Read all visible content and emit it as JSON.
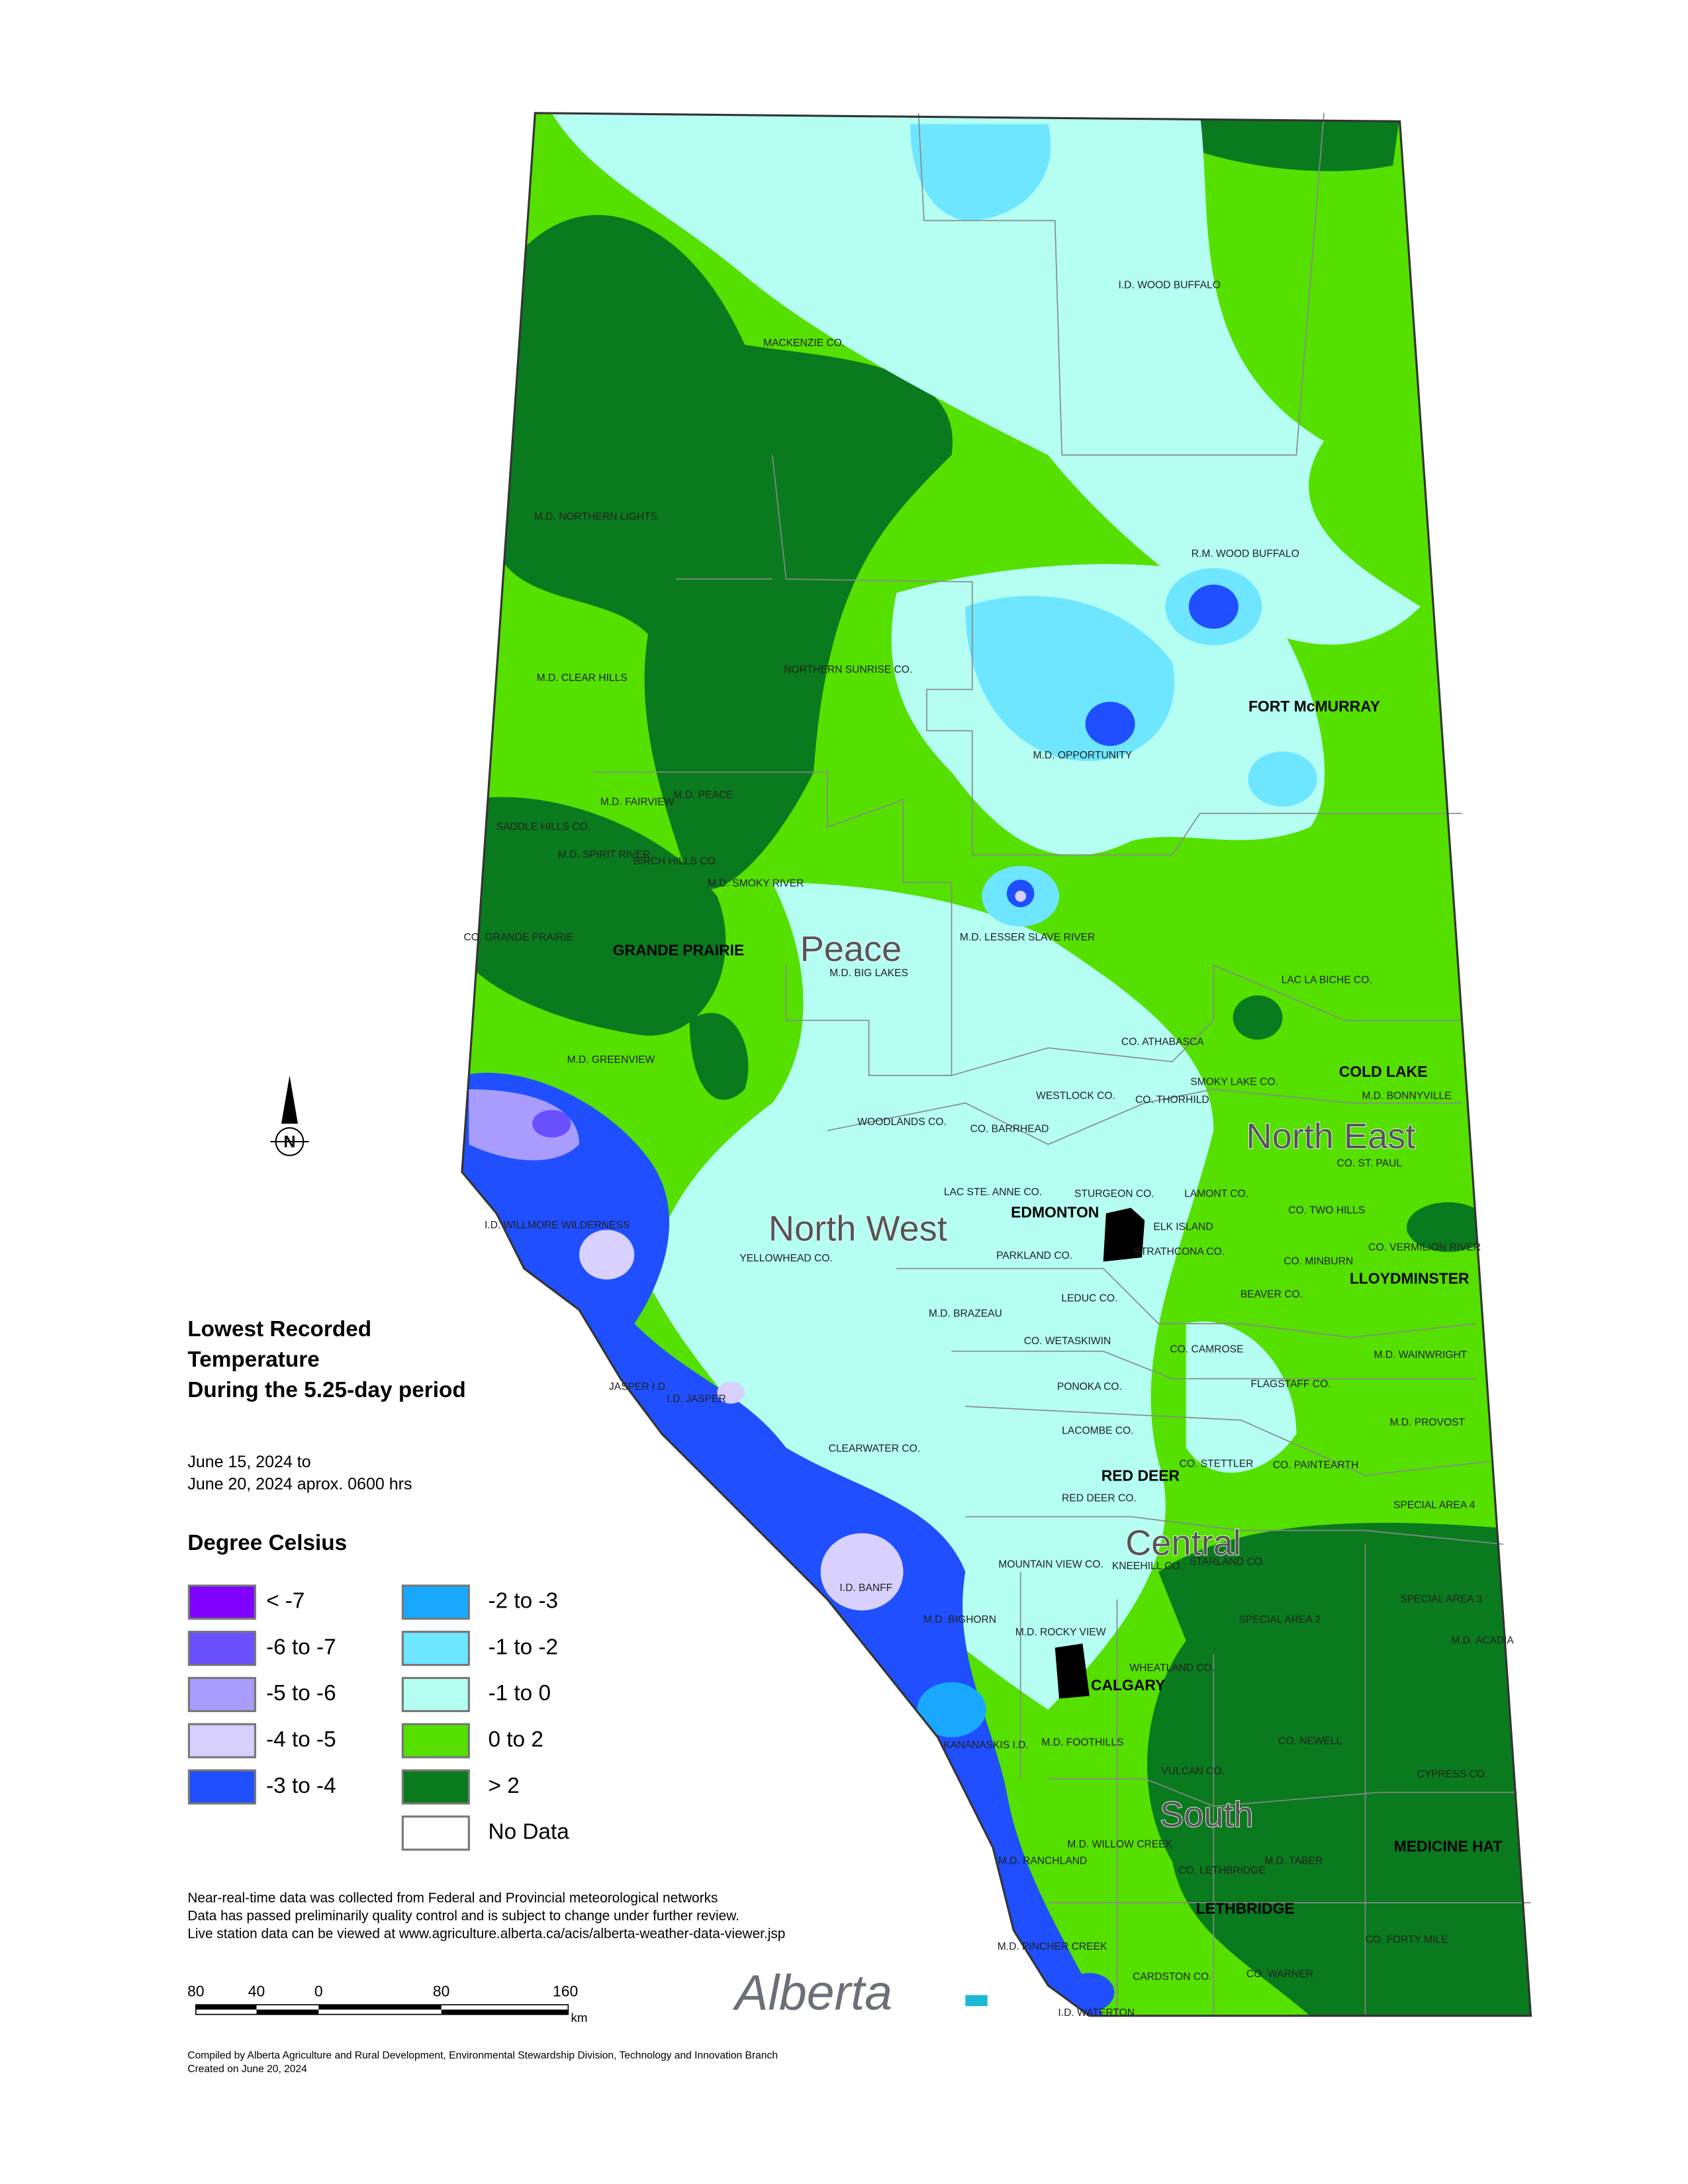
{
  "title_lines": [
    "Lowest Recorded",
    "Temperature",
    "During the 5.25-day period"
  ],
  "period_lines": [
    "June 15, 2024 to",
    "June 20, 2024 aprox. 0600 hrs"
  ],
  "legend": {
    "title": "Degree Celsius",
    "items": [
      {
        "label": "< -7",
        "color": "#8000ff"
      },
      {
        "label": "-6 to -7",
        "color": "#6a4fff"
      },
      {
        "label": "-5 to -6",
        "color": "#a89cff"
      },
      {
        "label": "-4 to -5",
        "color": "#d8d0ff"
      },
      {
        "label": "-3 to -4",
        "color": "#1f4fff"
      },
      {
        "label": "-2 to -3",
        "color": "#18a8ff"
      },
      {
        "label": "-1 to -2",
        "color": "#6ee6ff"
      },
      {
        "label": "-1 to 0",
        "color": "#b4fff2"
      },
      {
        "label": "0 to 2",
        "color": "#55e000"
      },
      {
        "label": "> 2",
        "color": "#0a7a1e"
      },
      {
        "label": "No Data",
        "color": "#ffffff"
      }
    ]
  },
  "notes": [
    "Near-real-time data was collected from Federal and Provincial meteorological networks",
    "Data has passed preliminarily quality control and is subject to change under further review.",
    "Live station data can be viewed at www.agriculture.alberta.ca/acis/alberta-weather-data-viewer.jsp"
  ],
  "scale": {
    "labels": [
      80,
      40,
      0,
      80,
      160
    ],
    "unit": "km"
  },
  "logo": "Alberta",
  "credits": [
    "Compiled by Alberta Agriculture and Rural Development, Environmental Stewardship Division, Technology and Innovation Branch",
    "Created on June 20, 2024"
  ],
  "regions": [
    "Peace",
    "North West",
    "North East",
    "Central",
    "South"
  ],
  "cities": [
    "FORT McMURRAY",
    "GRANDE PRAIRIE",
    "EDMONTON",
    "COLD LAKE",
    "LLOYDMINSTER",
    "RED DEER",
    "CALGARY",
    "MEDICINE HAT",
    "LETHBRIDGE"
  ],
  "municipalities": [
    "I.D. WOOD BUFFALO",
    "MACKENZIE CO.",
    "M.D. NORTHERN LIGHTS",
    "R.M. WOOD BUFFALO",
    "M.D. CLEAR HILLS",
    "NORTHERN SUNRISE CO.",
    "M.D. OPPORTUNITY",
    "SADDLE HILLS CO.",
    "M.D. LESSER SLAVE RIVER",
    "M.D. BIG LAKES",
    "LAC LA BICHE CO.",
    "M.D. GREENVIEW",
    "CO. ATHABASCA",
    "WESTLOCK CO.",
    "WOODLANDS CO.",
    "CO. BARRHEAD",
    "M.D. BONNYVILLE",
    "CO. ST. PAUL",
    "LAC STE. ANNE CO.",
    "STURGEON CO.",
    "LAMONT CO.",
    "CO. TWO HILLS",
    "I.D. WILLMORE WILDERNESS",
    "YELLOWHEAD CO.",
    "PARKLAND CO.",
    "STRATHCONA CO.",
    "CO. MINBURN",
    "LEDUC CO.",
    "BEAVER CO.",
    "M.D. BRAZEAU",
    "CO. WETASKIWIN",
    "CO. CAMROSE",
    "M.D. WAINWRIGHT",
    "JASPER I.D.",
    "FLAGSTAFF CO.",
    "PONOKA CO.",
    "I.D. JASPER",
    "LACOMBE CO.",
    "M.D. PROVOST",
    "CLEARWATER CO.",
    "CO. STETTLER",
    "CO. PAINTEARTH",
    "RED DEER CO.",
    "SPECIAL AREA 4",
    "MOUNTAIN VIEW CO.",
    "KNEEHILL CO.",
    "STARLAND CO.",
    "I.D. BANFF",
    "SPECIAL AREA 3",
    "M.D. BIGHORN",
    "SPECIAL AREA 2",
    "M.D. ROCKY VIEW",
    "WHEATLAND CO.",
    "M.D. ACADIA",
    "KANANASKIS I.D.",
    "M.D. FOOTHILLS",
    "CO. NEWELL",
    "VULCAN CO.",
    "CYPRESS CO.",
    "M.D. WILLOW CREEK",
    "M.D. RANCHLAND",
    "M.D. TABER",
    "CO. LETHBRIDGE",
    "M.D. PINCHER CREEK",
    "CO. FORTY MILE",
    "CARDSTON CO.",
    "CO. WARNER",
    "I.D. WATERTON",
    "M.D. FAIRVIEW",
    "M.D. PEACE",
    "M.D. SPIRIT RIVER",
    "BIRCH HILLS CO.",
    "M.D. SMOKY RIVER",
    "CO. GRANDE PRAIRIE",
    "SMOKY LAKE CO.",
    "CO. THORHILD",
    "CO. VERMILION RIVER",
    "ELK ISLAND"
  ]
}
